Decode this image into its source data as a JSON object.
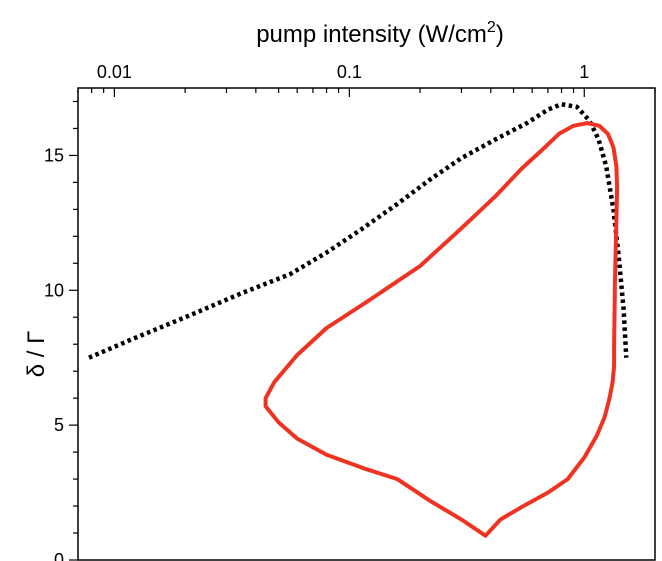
{
  "chart_data": {
    "type": "line",
    "title": "",
    "xlabel": "pump intensity (W/cm",
    "xlabel_sup": "2",
    "xlabel_end": ")",
    "ylabel": "δ / Γ",
    "x_scale": "log",
    "x_axis_position": "top",
    "xlim": [
      0.007,
      2.0
    ],
    "ylim": [
      0,
      17.5
    ],
    "x_ticks": [
      {
        "value": 0.01,
        "label": "0.01"
      },
      {
        "value": 0.1,
        "label": "0.1"
      },
      {
        "value": 1,
        "label": "1"
      }
    ],
    "y_ticks": [
      {
        "value": 0,
        "label": "0"
      },
      {
        "value": 5,
        "label": "5"
      },
      {
        "value": 10,
        "label": "10"
      },
      {
        "value": 15,
        "label": "15"
      }
    ],
    "grid": false,
    "legend": "none",
    "series": [
      {
        "style": "dotted",
        "color": "#000000",
        "x": [
          0.0078,
          0.012,
          0.02,
          0.035,
          0.056,
          0.08,
          0.11,
          0.16,
          0.22,
          0.3,
          0.42,
          0.57,
          0.7,
          0.8,
          0.93,
          1.05,
          1.15,
          1.24,
          1.33,
          1.4,
          1.47,
          1.51
        ],
        "y": [
          7.5,
          8.2,
          9.0,
          9.9,
          10.6,
          11.4,
          12.2,
          13.2,
          14.1,
          14.9,
          15.6,
          16.2,
          16.7,
          16.9,
          16.8,
          16.3,
          15.6,
          14.6,
          13.0,
          11.3,
          9.3,
          7.5
        ]
      },
      {
        "style": "solid",
        "color": "#ee3322",
        "x": [
          0.38,
          0.44,
          0.55,
          0.7,
          0.85,
          1.0,
          1.13,
          1.22,
          1.28,
          1.32,
          1.34,
          1.34,
          1.345,
          1.35,
          1.36,
          1.37,
          1.38,
          1.37,
          1.33,
          1.26,
          1.16,
          1.03,
          0.9,
          0.78,
          0.68,
          0.54,
          0.42,
          0.3,
          0.2,
          0.12,
          0.08,
          0.06,
          0.048,
          0.044,
          0.044,
          0.05,
          0.06,
          0.08,
          0.115,
          0.16,
          0.22,
          0.3,
          0.38
        ],
        "y": [
          0.9,
          1.5,
          2.0,
          2.5,
          3.0,
          3.8,
          4.6,
          5.3,
          6.0,
          6.6,
          7.2,
          8.0,
          9.0,
          10.2,
          11.4,
          12.6,
          13.8,
          14.6,
          15.3,
          15.8,
          16.1,
          16.2,
          16.1,
          15.8,
          15.3,
          14.5,
          13.5,
          12.3,
          10.9,
          9.6,
          8.6,
          7.6,
          6.6,
          6.0,
          5.7,
          5.1,
          4.5,
          3.9,
          3.4,
          3.0,
          2.2,
          1.5,
          0.9
        ]
      }
    ]
  }
}
